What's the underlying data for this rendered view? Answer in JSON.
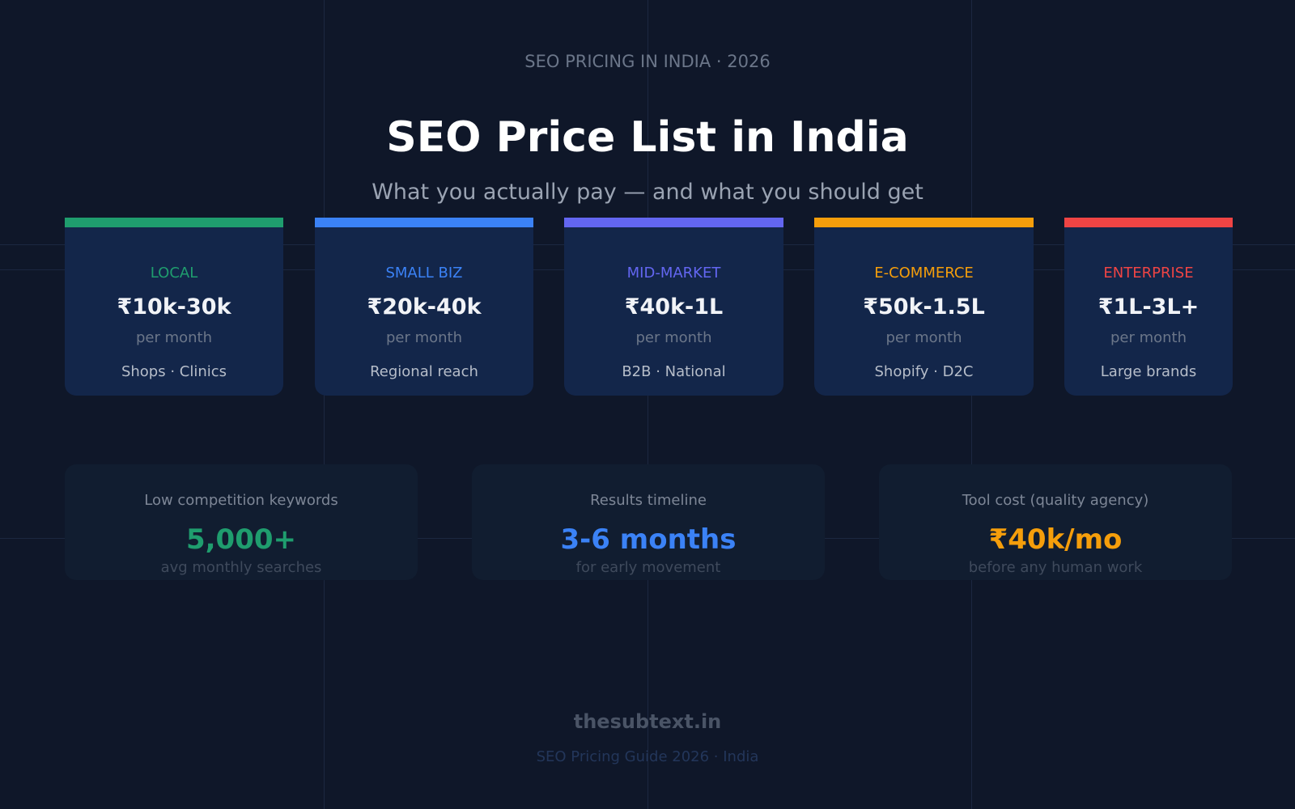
{
  "header": {
    "kicker": "SEO PRICING IN INDIA · 2026",
    "title": "SEO Price List in India",
    "subtitle": "What you actually pay — and what you should get"
  },
  "tiers": [
    {
      "label": "LOCAL",
      "price": "₹10k-30k",
      "unit": "per month",
      "note": "Shops · Clinics"
    },
    {
      "label": "SMALL BIZ",
      "price": "₹20k-40k",
      "unit": "per month",
      "note": "Regional reach"
    },
    {
      "label": "MID-MARKET",
      "price": "₹40k-1L",
      "unit": "per month",
      "note": "B2B · National"
    },
    {
      "label": "E-COMMERCE",
      "price": "₹50k-1.5L",
      "unit": "per month",
      "note": "Shopify · D2C"
    },
    {
      "label": "ENTERPRISE",
      "price": "₹1L-3L+",
      "unit": "per month",
      "note": "Large brands"
    }
  ],
  "stats": [
    {
      "label": "Low competition keywords",
      "value": "5,000+",
      "note": "avg monthly searches"
    },
    {
      "label": "Results timeline",
      "value": "3-6 months",
      "note": "for early movement"
    },
    {
      "label": "Tool cost (quality agency)",
      "value": "₹40k/mo",
      "note": "before any human work"
    }
  ],
  "footer": {
    "brand": "thesubtext.in",
    "caption": "SEO Pricing Guide 2026 · India"
  }
}
